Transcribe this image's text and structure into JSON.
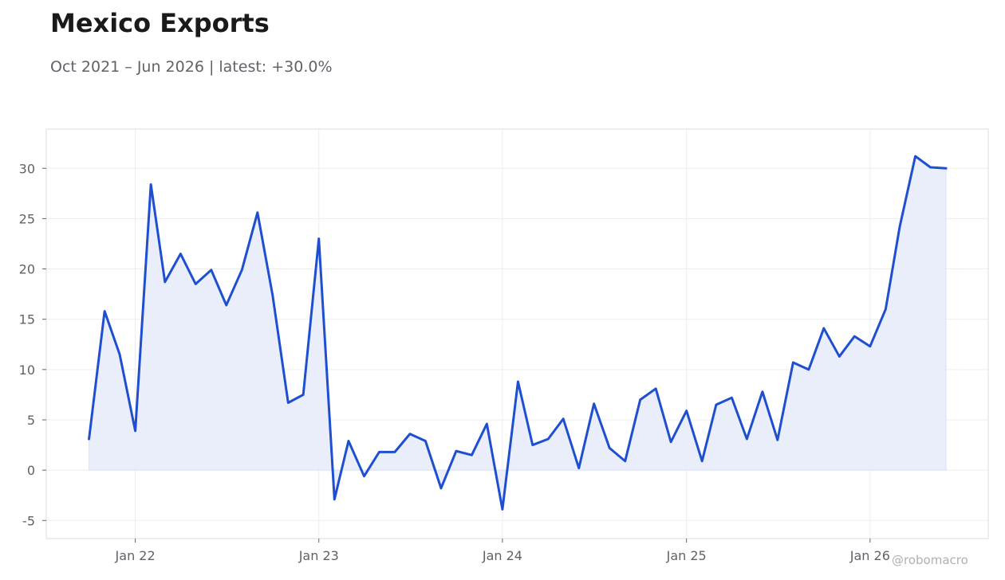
{
  "title": "Mexico Exports",
  "subtitle": "Oct 2021 – Jun 2026 | latest: +30.0%",
  "watermark": "@robomacro",
  "colors": {
    "line": "#1f4fd1",
    "fill": "#e8edfa",
    "grid": "#ededed",
    "axis": "#dddddd",
    "text": "#5f6368"
  },
  "chart_data": {
    "type": "area",
    "title": "Mexico Exports",
    "subtitle": "Oct 2021 – Jun 2026 | latest: +30.0%",
    "xlabel": "",
    "ylabel": "",
    "grid": true,
    "legend": "none",
    "ylim": [
      -6.8,
      33.9
    ],
    "xlim": [
      "2021-07-08",
      "2026-08-24"
    ],
    "x_ticks": [
      {
        "date": "2022-01-01",
        "label": "Jan 22"
      },
      {
        "date": "2023-01-01",
        "label": "Jan 23"
      },
      {
        "date": "2024-01-01",
        "label": "Jan 24"
      },
      {
        "date": "2025-01-01",
        "label": "Jan 25"
      },
      {
        "date": "2026-01-01",
        "label": "Jan 26"
      }
    ],
    "y_ticks": [
      -5,
      0,
      5,
      10,
      15,
      20,
      25,
      30
    ],
    "series": [
      {
        "x": [
          "2021-10",
          "2021-11",
          "2021-12",
          "2022-01",
          "2022-02",
          "2022-03",
          "2022-04",
          "2022-05",
          "2022-06",
          "2022-07",
          "2022-08",
          "2022-09",
          "2022-10",
          "2022-11",
          "2022-12",
          "2023-01",
          "2023-02",
          "2023-03",
          "2023-04",
          "2023-05",
          "2023-06",
          "2023-07",
          "2023-08",
          "2023-09",
          "2023-10",
          "2023-11",
          "2023-12",
          "2024-01",
          "2024-02",
          "2024-03",
          "2024-04",
          "2024-05",
          "2024-06",
          "2024-07",
          "2024-08",
          "2024-09",
          "2024-10",
          "2024-11",
          "2024-12",
          "2025-01",
          "2025-02",
          "2025-03",
          "2025-04",
          "2025-05",
          "2025-06",
          "2025-07",
          "2025-08",
          "2025-09",
          "2025-10",
          "2025-11",
          "2025-12",
          "2026-01",
          "2026-02",
          "2026-03",
          "2026-04",
          "2026-05",
          "2026-06"
        ],
        "values": [
          3.1,
          15.8,
          11.5,
          3.9,
          28.4,
          18.7,
          21.5,
          18.5,
          19.9,
          16.4,
          19.9,
          25.6,
          17.4,
          6.7,
          7.5,
          23.0,
          -2.9,
          2.9,
          -0.6,
          1.8,
          1.8,
          3.6,
          2.9,
          -1.8,
          1.9,
          1.5,
          4.6,
          -3.9,
          8.8,
          2.5,
          3.1,
          5.1,
          0.2,
          6.6,
          2.2,
          0.9,
          7.0,
          8.1,
          2.8,
          5.9,
          0.9,
          6.5,
          7.2,
          3.1,
          7.8,
          3.0,
          10.7,
          10.0,
          14.1,
          11.3,
          13.3,
          12.3,
          16.0,
          24.2,
          31.2,
          30.1,
          30.0
        ]
      }
    ]
  }
}
